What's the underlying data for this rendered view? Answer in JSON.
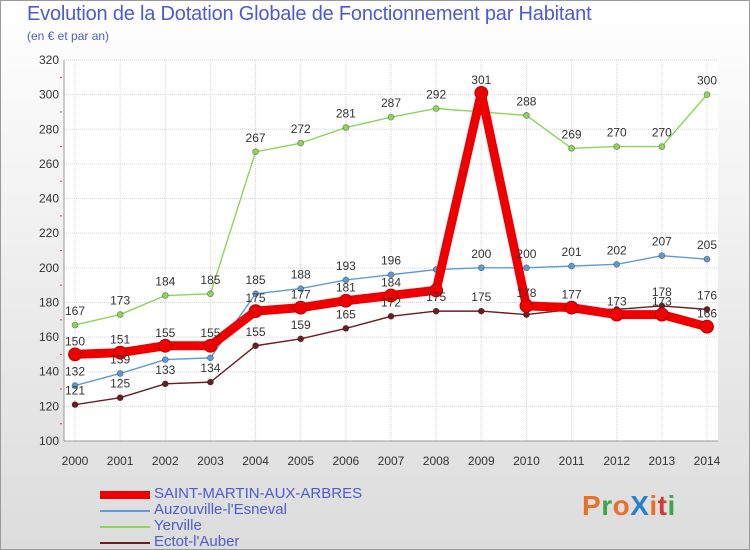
{
  "title": "Evolution de la Dotation Globale de Fonctionnement par Habitant",
  "subtitle": "(en € et par an)",
  "logo": {
    "text": "ProXiti",
    "colors": [
      "#e8702a",
      "#3aa84a",
      "#e8702a",
      "#2b7fd1",
      "#e8702a",
      "#d03a3a",
      "#3aa84a"
    ]
  },
  "chart_data": {
    "type": "line",
    "title": "Evolution de la Dotation Globale de Fonctionnement par Habitant",
    "subtitle": "(en € et par an)",
    "xlabel": "",
    "ylabel": "",
    "ylim": [
      100,
      320
    ],
    "yticks": [
      100,
      120,
      140,
      160,
      180,
      200,
      220,
      240,
      260,
      280,
      300,
      320
    ],
    "x": [
      "2000",
      "2001",
      "2002",
      "2003",
      "2004",
      "2005",
      "2006",
      "2007",
      "2008",
      "2009",
      "2010",
      "2011",
      "2012",
      "2013",
      "2014"
    ],
    "grid": true,
    "legend_position": "bottom-left",
    "series": [
      {
        "name": "SAINT-MARTIN-AUX-ARBRES",
        "color": "#ee0000",
        "emphasis": true,
        "values": [
          150,
          151,
          155,
          155,
          175,
          177,
          181,
          184,
          187,
          301,
          178,
          177,
          173,
          173,
          166
        ]
      },
      {
        "name": "Auzouville-l'Esneval",
        "color": "#5f9bd2",
        "emphasis": false,
        "values": [
          132,
          139,
          147,
          148,
          185,
          188,
          193,
          196,
          199,
          200,
          200,
          201,
          202,
          207,
          205
        ]
      },
      {
        "name": "Yerville",
        "color": "#8cd45a",
        "emphasis": false,
        "values": [
          167,
          173,
          184,
          185,
          267,
          272,
          281,
          287,
          292,
          290,
          288,
          269,
          270,
          270,
          300
        ]
      },
      {
        "name": "Ectot-l'Auber",
        "color": "#6b1e22",
        "emphasis": false,
        "values": [
          121,
          125,
          133,
          134,
          155,
          159,
          165,
          172,
          175,
          175,
          173,
          176,
          176,
          178,
          176
        ]
      }
    ],
    "data_labels": [
      {
        "series": "Yerville",
        "values": [
          "167",
          "173",
          "184",
          "185",
          "267",
          "272",
          "281",
          "287",
          "292",
          "",
          "288",
          "269",
          "270",
          "270",
          "300"
        ]
      },
      {
        "series": "SAINT-MARTIN-AUX-ARBRES",
        "values": [
          "150",
          "151",
          "155",
          "155",
          "175",
          "177",
          "181",
          "184",
          "",
          "301",
          "178",
          "177",
          "173",
          "173",
          "166"
        ]
      },
      {
        "series": "Auzouville-l'Esneval",
        "values": [
          "132",
          "139",
          "",
          "",
          "185",
          "188",
          "193",
          "196",
          "",
          "200",
          "200",
          "201",
          "202",
          "207",
          "205"
        ]
      },
      {
        "series": "Ectot-l'Auber",
        "values": [
          "121",
          "125",
          "133",
          "134",
          "155",
          "159",
          "165",
          "172",
          "175",
          "175",
          "",
          "",
          "",
          "178",
          "176"
        ]
      }
    ]
  }
}
